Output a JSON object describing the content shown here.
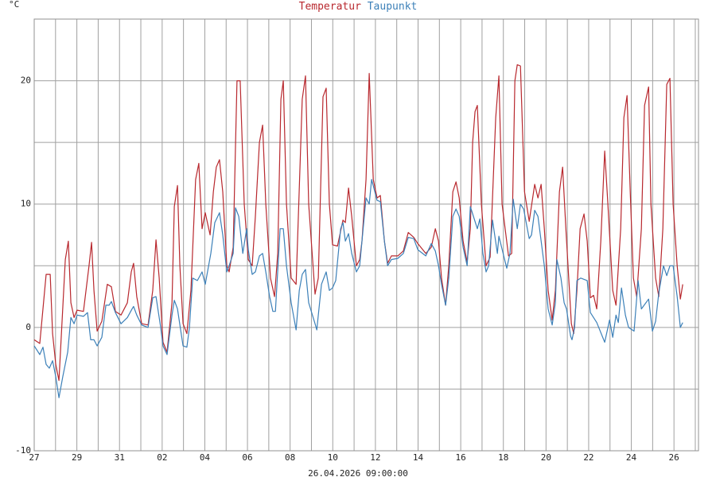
{
  "chart_data": {
    "type": "line",
    "y_unit_label": "°C",
    "footer": "26.04.2026 09:00:00",
    "xlim": [
      0,
      31.15
    ],
    "ylim": [
      -10,
      25
    ],
    "xticks": [
      {
        "value": 0,
        "label": "27"
      },
      {
        "value": 2,
        "label": "29"
      },
      {
        "value": 4,
        "label": "31"
      },
      {
        "value": 6,
        "label": "02"
      },
      {
        "value": 8,
        "label": "04"
      },
      {
        "value": 10,
        "label": "06"
      },
      {
        "value": 12,
        "label": "08"
      },
      {
        "value": 14,
        "label": "10"
      },
      {
        "value": 16,
        "label": "12"
      },
      {
        "value": 18,
        "label": "14"
      },
      {
        "value": 20,
        "label": "16"
      },
      {
        "value": 22,
        "label": "18"
      },
      {
        "value": 24,
        "label": "20"
      },
      {
        "value": 26,
        "label": "22"
      },
      {
        "value": 28,
        "label": "24"
      },
      {
        "value": 30,
        "label": "26"
      }
    ],
    "minor_xticks": [
      1,
      3,
      5,
      7,
      9,
      11,
      13,
      15,
      17,
      19,
      21,
      23,
      25,
      27,
      29,
      31
    ],
    "yticks": [
      -10,
      0,
      10,
      20
    ],
    "minor_yticks": [
      -5,
      5,
      15,
      25
    ],
    "grid": true,
    "series": [
      {
        "name": "Temperatur",
        "color": "#b8282e",
        "x": [
          0,
          0.26,
          0.56,
          0.75,
          0.86,
          1.01,
          1.16,
          1.46,
          1.6,
          1.72,
          1.87,
          2.01,
          2.31,
          2.57,
          2.69,
          2.8,
          2.95,
          3.17,
          3.43,
          3.62,
          3.81,
          4.07,
          4.37,
          4.55,
          4.66,
          4.81,
          5.04,
          5.34,
          5.56,
          5.71,
          5.86,
          6.04,
          6.23,
          6.46,
          6.57,
          6.72,
          6.83,
          6.98,
          7.16,
          7.35,
          7.57,
          7.72,
          7.87,
          8.02,
          8.25,
          8.4,
          8.54,
          8.69,
          8.84,
          9.03,
          9.14,
          9.33,
          9.51,
          9.66,
          9.85,
          10.04,
          10.22,
          10.37,
          10.56,
          10.71,
          10.86,
          11.08,
          11.27,
          11.42,
          11.57,
          11.68,
          11.83,
          12.05,
          12.28,
          12.57,
          12.72,
          12.87,
          13.17,
          13.32,
          13.54,
          13.69,
          13.84,
          13.99,
          14.22,
          14.48,
          14.59,
          14.74,
          14.89,
          15.11,
          15.26,
          15.37,
          15.56,
          15.71,
          15.9,
          16.08,
          16.23,
          16.42,
          16.57,
          16.75,
          17.05,
          17.31,
          17.54,
          17.8,
          17.99,
          18.36,
          18.62,
          18.81,
          18.96,
          19.1,
          19.29,
          19.44,
          19.63,
          19.78,
          19.93,
          20.11,
          20.3,
          20.45,
          20.56,
          20.67,
          20.78,
          20.97,
          21.19,
          21.38,
          21.64,
          21.79,
          21.94,
          22.24,
          22.39,
          22.54,
          22.65,
          22.8,
          22.99,
          23.21,
          23.47,
          23.62,
          23.77,
          23.92,
          24.1,
          24.29,
          24.44,
          24.63,
          24.78,
          24.93,
          25.19,
          25.3,
          25.45,
          25.6,
          25.78,
          25.93,
          26.08,
          26.23,
          26.38,
          26.57,
          26.75,
          26.9,
          27.13,
          27.28,
          27.5,
          27.65,
          27.8,
          27.95,
          28.1,
          28.25,
          28.47,
          28.62,
          28.81,
          28.92,
          29.14,
          29.29,
          29.48,
          29.66,
          29.81,
          29.96,
          30.15,
          30.3,
          30.41
        ],
        "values": [
          -1,
          -1.3,
          4.3,
          4.3,
          -0.5,
          -3,
          -4.3,
          5.5,
          7,
          2,
          0.8,
          1.4,
          1.3,
          5,
          6.9,
          3,
          -0.3,
          0.5,
          3.5,
          3.3,
          1.3,
          1,
          2,
          4.5,
          5.2,
          2.5,
          0.3,
          0.2,
          3,
          7.1,
          4,
          -1.2,
          -2,
          2,
          9.8,
          11.5,
          5,
          0.3,
          -0.5,
          3,
          12,
          13.3,
          8,
          9.3,
          7.5,
          11,
          13,
          13.6,
          11,
          5,
          4.5,
          6.5,
          20,
          20,
          10,
          5.5,
          5,
          9,
          15,
          16.4,
          10,
          4,
          2.5,
          6,
          18.5,
          20,
          10,
          4,
          3.5,
          18.5,
          20.4,
          10,
          2.7,
          4,
          18.7,
          19.4,
          10,
          6.7,
          6.6,
          8.7,
          8.5,
          11.3,
          9,
          5,
          5.5,
          7,
          12,
          20.6,
          12,
          10.5,
          10.7,
          7,
          5.2,
          5.8,
          5.8,
          6.2,
          7.7,
          7.3,
          6.8,
          6,
          6.5,
          8,
          7,
          4,
          1.8,
          5,
          11,
          11.8,
          10.5,
          7,
          5.3,
          8,
          15,
          17.5,
          18,
          10,
          5,
          5.7,
          17,
          20.4,
          10,
          5.8,
          6,
          20,
          21.3,
          21.2,
          11,
          8.6,
          11.6,
          10.5,
          11.6,
          8,
          3,
          0.6,
          3,
          11,
          13,
          8,
          0.3,
          -0.5,
          3,
          8,
          9.2,
          7,
          2.4,
          2.6,
          1.5,
          7,
          14.3,
          10,
          3,
          1.8,
          8,
          17,
          18.8,
          11,
          4,
          2.5,
          8,
          18,
          19.5,
          10,
          4,
          2.5,
          8,
          19.7,
          20.2,
          10,
          5,
          2.3,
          3.5
        ]
      },
      {
        "name": "Taupunkt",
        "color": "#3c80b8",
        "x": [
          0,
          0.26,
          0.41,
          0.56,
          0.71,
          0.86,
          1.01,
          1.16,
          1.34,
          1.57,
          1.72,
          1.87,
          2.01,
          2.31,
          2.5,
          2.65,
          2.8,
          2.95,
          3.17,
          3.36,
          3.51,
          3.62,
          3.81,
          4.07,
          4.37,
          4.59,
          4.66,
          4.81,
          5.04,
          5.34,
          5.56,
          5.71,
          5.93,
          6.04,
          6.23,
          6.46,
          6.57,
          6.72,
          6.98,
          7.16,
          7.28,
          7.43,
          7.65,
          7.87,
          8.02,
          8.28,
          8.47,
          8.69,
          8.84,
          9.03,
          9.14,
          9.33,
          9.44,
          9.59,
          9.78,
          9.96,
          10.04,
          10.22,
          10.37,
          10.56,
          10.71,
          10.86,
          11.04,
          11.19,
          11.31,
          11.53,
          11.68,
          11.83,
          12.05,
          12.28,
          12.43,
          12.57,
          12.72,
          12.87,
          13.17,
          13.25,
          13.47,
          13.69,
          13.84,
          13.99,
          14.14,
          14.37,
          14.48,
          14.59,
          14.74,
          14.89,
          15.11,
          15.26,
          15.37,
          15.56,
          15.71,
          15.82,
          16.08,
          16.23,
          16.42,
          16.57,
          16.75,
          17.05,
          17.31,
          17.54,
          17.8,
          17.99,
          18.36,
          18.62,
          18.81,
          18.96,
          19.1,
          19.29,
          19.44,
          19.63,
          19.78,
          19.93,
          20.11,
          20.3,
          20.45,
          20.78,
          20.9,
          21.04,
          21.19,
          21.31,
          21.49,
          21.72,
          21.79,
          22.16,
          22.31,
          22.46,
          22.65,
          22.8,
          22.95,
          23.21,
          23.32,
          23.47,
          23.62,
          23.92,
          24.1,
          24.29,
          24.44,
          24.51,
          24.7,
          24.85,
          24.96,
          25.15,
          25.22,
          25.34,
          25.45,
          25.63,
          25.93,
          26.08,
          26.23,
          26.38,
          26.75,
          26.98,
          27.13,
          27.28,
          27.39,
          27.54,
          27.72,
          27.87,
          28.13,
          28.32,
          28.47,
          28.81,
          28.99,
          29.14,
          29.29,
          29.51,
          29.66,
          29.81,
          29.96,
          30.15,
          30.3,
          30.41
        ],
        "values": [
          -1.5,
          -2.2,
          -1.6,
          -3,
          -3.3,
          -2.7,
          -4,
          -5.7,
          -4,
          -2,
          0.8,
          0.3,
          1,
          0.9,
          1.2,
          -1,
          -1,
          -1.5,
          -0.8,
          1.8,
          1.8,
          2.1,
          1.2,
          0.3,
          0.8,
          1.5,
          1.7,
          1,
          0.2,
          0,
          2.4,
          2.5,
          0,
          -1.5,
          -2.2,
          1,
          2.2,
          1.5,
          -1.5,
          -1.6,
          0,
          4,
          3.8,
          4.5,
          3.5,
          6,
          8.5,
          9.3,
          7.5,
          4.5,
          5,
          6,
          9.7,
          9,
          6,
          8,
          6.3,
          4.3,
          4.5,
          5.8,
          6,
          4.5,
          2.5,
          1.3,
          1.3,
          8,
          8,
          5,
          2,
          -0.2,
          3,
          4.3,
          4.7,
          2,
          0.3,
          -0.2,
          3.5,
          4.5,
          3,
          3.2,
          3.8,
          8,
          8.5,
          7,
          7.6,
          6,
          4.5,
          5,
          7,
          10.5,
          10,
          12,
          10.3,
          10.2,
          7,
          5,
          5.5,
          5.6,
          6,
          7.3,
          7.2,
          6.3,
          5.8,
          6.8,
          6.2,
          5,
          3.5,
          1.8,
          4,
          9,
          9.6,
          9,
          6.5,
          5,
          9.8,
          8,
          8.8,
          6,
          4.5,
          5,
          8.7,
          6,
          7.4,
          4.8,
          6,
          10.4,
          8,
          10,
          9.6,
          7.2,
          7.5,
          9.5,
          9,
          5,
          1.5,
          0.2,
          2,
          5.5,
          4,
          2,
          1.5,
          -0.7,
          -1,
          0,
          3.8,
          4,
          3.8,
          1.2,
          0.8,
          0.4,
          -1.2,
          0.6,
          -0.8,
          1,
          0.4,
          3.2,
          1,
          0,
          -0.3,
          3.8,
          1.5,
          2.3,
          -0.3,
          0.5,
          2.8,
          5,
          4.2,
          5,
          5,
          2.5,
          0,
          0.4
        ]
      }
    ]
  }
}
